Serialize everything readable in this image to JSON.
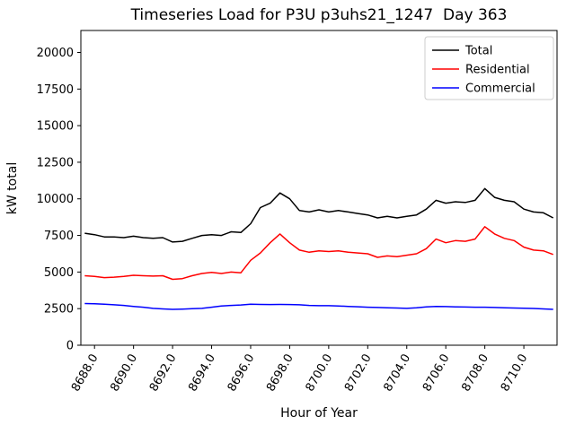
{
  "chart_data": {
    "type": "line",
    "title": "Timeseries Load for P3U p3uhs21_1247  Day 363",
    "xlabel": "Hour of Year",
    "ylabel": "kW total",
    "xlim": [
      8687.3,
      8711.7
    ],
    "ylim": [
      0,
      21500
    ],
    "grid": false,
    "legend_position": "upper right",
    "x_tick_rotation": 60,
    "x_ticks": [
      8688,
      8690,
      8692,
      8694,
      8696,
      8698,
      8700,
      8702,
      8704,
      8706,
      8708,
      8710
    ],
    "x_tick_labels": [
      "8688.0",
      "8690.0",
      "8692.0",
      "8694.0",
      "8696.0",
      "8698.0",
      "8700.0",
      "8702.0",
      "8704.0",
      "8706.0",
      "8708.0",
      "8710.0"
    ],
    "y_ticks": [
      0,
      2500,
      5000,
      7500,
      10000,
      12500,
      15000,
      17500,
      20000
    ],
    "y_tick_labels": [
      "0",
      "2500",
      "5000",
      "7500",
      "10000",
      "12500",
      "15000",
      "17500",
      "20000"
    ],
    "x": [
      8687.5,
      8688.0,
      8688.5,
      8689.0,
      8689.5,
      8690.0,
      8690.5,
      8691.0,
      8691.5,
      8692.0,
      8692.5,
      8693.0,
      8693.5,
      8694.0,
      8694.5,
      8695.0,
      8695.5,
      8696.0,
      8696.5,
      8697.0,
      8697.5,
      8698.0,
      8698.5,
      8699.0,
      8699.5,
      8700.0,
      8700.5,
      8701.0,
      8701.5,
      8702.0,
      8702.5,
      8703.0,
      8703.5,
      8704.0,
      8704.5,
      8705.0,
      8705.5,
      8706.0,
      8706.5,
      8707.0,
      8707.5,
      8708.0,
      8708.5,
      8709.0,
      8709.5,
      8710.0,
      8710.5,
      8711.0,
      8711.5
    ],
    "series": [
      {
        "name": "Total",
        "color": "#000000",
        "values": [
          7650,
          7550,
          7400,
          7400,
          7350,
          7450,
          7350,
          7300,
          7350,
          7050,
          7100,
          7300,
          7500,
          7550,
          7500,
          7750,
          7700,
          8300,
          9400,
          9700,
          10400,
          10000,
          9200,
          9100,
          9250,
          9100,
          9200,
          9100,
          9000,
          8900,
          8700,
          8800,
          8700,
          8800,
          8900,
          9300,
          9900,
          9700,
          9800,
          9750,
          9900,
          10700,
          10100,
          9900,
          9800,
          9300,
          9100,
          9050,
          8700
        ]
      },
      {
        "name": "Residential",
        "color": "#ff0000",
        "values": [
          4750,
          4700,
          4620,
          4650,
          4700,
          4780,
          4750,
          4720,
          4750,
          4500,
          4550,
          4750,
          4900,
          4980,
          4900,
          5000,
          4950,
          5800,
          6300,
          7000,
          7600,
          7000,
          6500,
          6350,
          6450,
          6400,
          6450,
          6350,
          6300,
          6250,
          6000,
          6100,
          6050,
          6150,
          6250,
          6600,
          7250,
          7000,
          7150,
          7100,
          7250,
          8100,
          7600,
          7300,
          7150,
          6700,
          6500,
          6450,
          6200
        ]
      },
      {
        "name": "Commercial",
        "color": "#0000ff",
        "values": [
          2850,
          2830,
          2800,
          2760,
          2720,
          2650,
          2600,
          2520,
          2480,
          2450,
          2470,
          2500,
          2520,
          2600,
          2680,
          2720,
          2750,
          2800,
          2790,
          2780,
          2790,
          2780,
          2760,
          2720,
          2700,
          2700,
          2680,
          2650,
          2630,
          2600,
          2580,
          2560,
          2540,
          2520,
          2560,
          2620,
          2650,
          2640,
          2620,
          2610,
          2600,
          2600,
          2580,
          2560,
          2540,
          2530,
          2510,
          2480,
          2450
        ]
      }
    ]
  }
}
